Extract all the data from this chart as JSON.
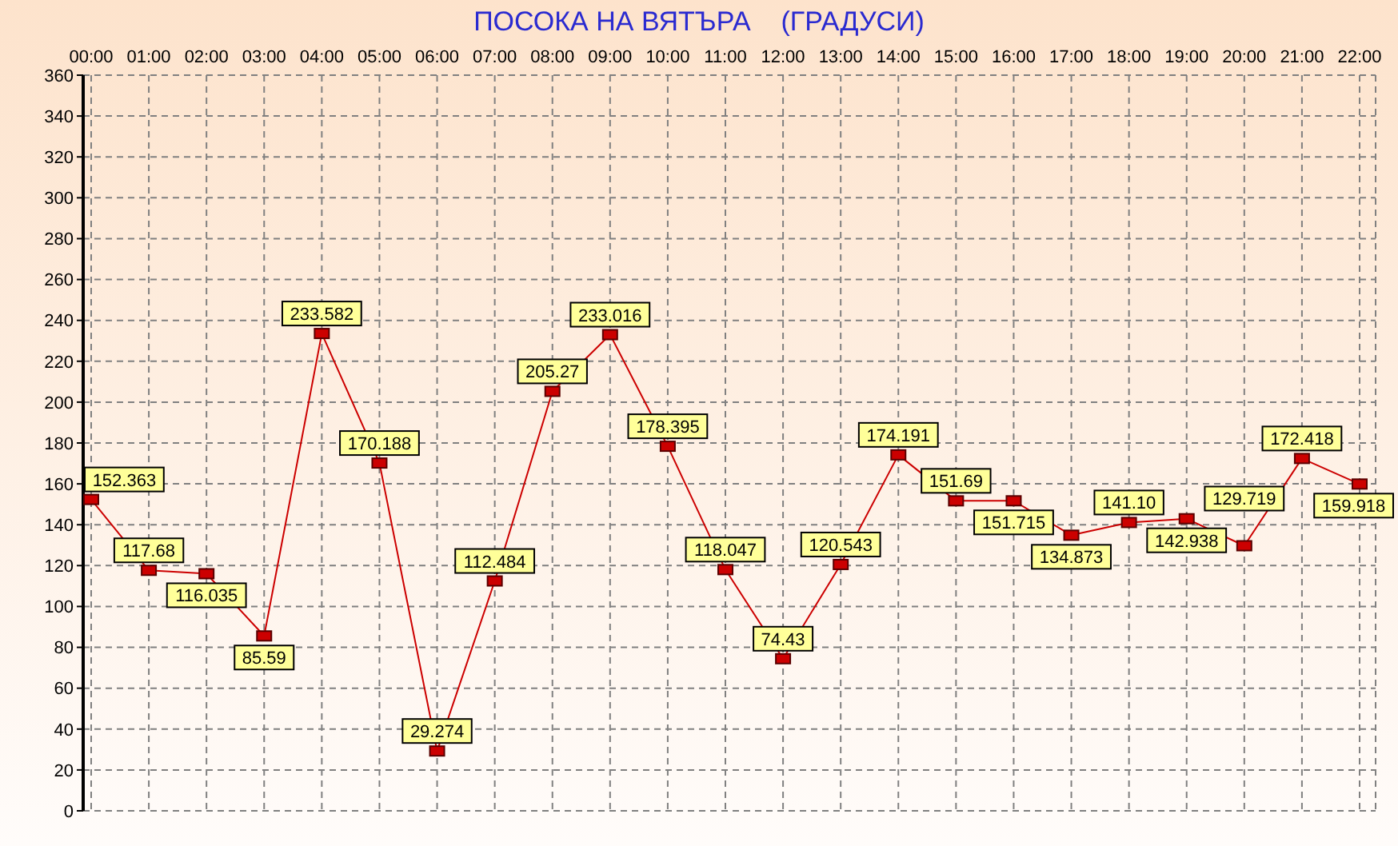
{
  "chart_data": {
    "type": "line",
    "title": "ПОСОКА НА ВЯТЪРА    (ГРАДУСИ)",
    "categories": [
      "00:00",
      "01:00",
      "02:00",
      "03:00",
      "04:00",
      "05:00",
      "06:00",
      "07:00",
      "08:00",
      "09:00",
      "10:00",
      "11:00",
      "12:00",
      "13:00",
      "14:00",
      "15:00",
      "16:00",
      "17:00",
      "18:00",
      "19:00",
      "20:00",
      "21:00",
      "22:00"
    ],
    "series": [
      {
        "color": "#cc0000",
        "values": [
          152.363,
          117.68,
          116.035,
          85.59,
          233.582,
          170.188,
          29.274,
          112.484,
          205.27,
          233.016,
          178.395,
          118.047,
          74.43,
          120.543,
          174.191,
          151.69,
          151.715,
          134.873,
          141.1,
          142.938,
          129.719,
          172.418,
          159.918
        ],
        "value_labels": [
          "152.363",
          "117.68",
          "116.035",
          "85.59",
          "233.582",
          "170.188",
          "29.274",
          "112.484",
          "205.27",
          "233.016",
          "178.395",
          "118.047",
          "74.43",
          "120.543",
          "174.191",
          "151.69",
          "151.715",
          "134.873",
          "141.10",
          "142.938",
          "129.719",
          "172.418",
          "159.918"
        ]
      }
    ],
    "ylim": [
      0,
      360
    ],
    "yticks": [
      0,
      20,
      40,
      60,
      80,
      100,
      120,
      140,
      160,
      180,
      200,
      220,
      240,
      260,
      280,
      300,
      320,
      340,
      360
    ],
    "grid": true,
    "marker": "square",
    "line_style": "solid"
  }
}
